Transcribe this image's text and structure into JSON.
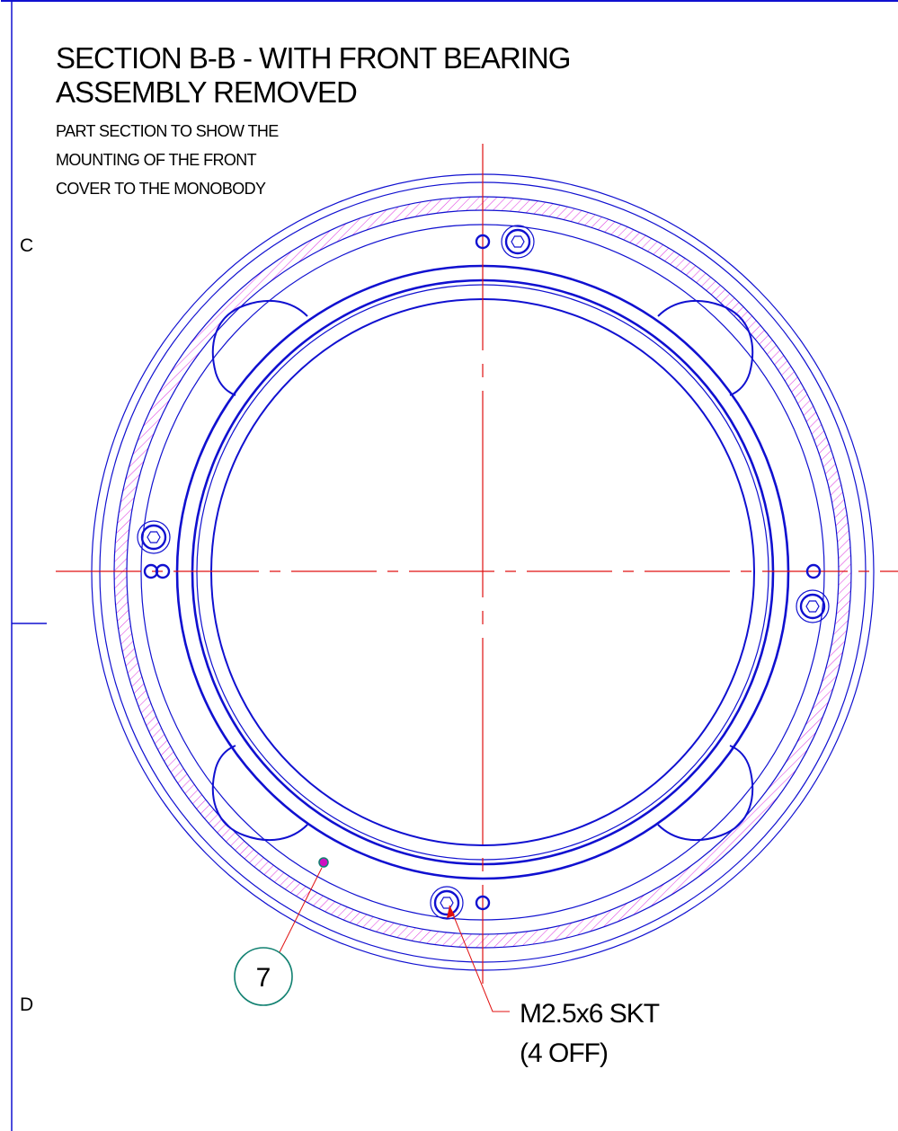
{
  "title": {
    "line1": "SECTION B-B - WITH FRONT BEARING",
    "line2": "ASSEMBLY REMOVED"
  },
  "note": {
    "line1": "PART SECTION TO SHOW THE",
    "line2": "MOUNTING OF THE FRONT",
    "line3": "COVER TO THE MONOBODY"
  },
  "zones": {
    "upper": "C",
    "lower": "D"
  },
  "balloon": {
    "label": "7"
  },
  "callout": {
    "line1": "M2.5x6 SKT",
    "line2": "(4 OFF)"
  },
  "colors": {
    "outline": "#1010d0",
    "centerline": "#e01010",
    "hatch": "#e040e0",
    "balloon": "#108070",
    "marker": "#d010c0"
  },
  "icons": [
    "hex-socket-screw-icon",
    "dowel-hole-icon"
  ]
}
